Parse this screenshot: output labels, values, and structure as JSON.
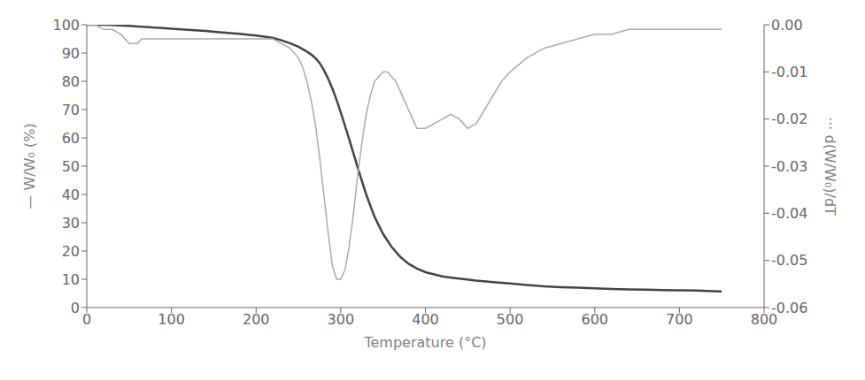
{
  "chart_data": {
    "type": "line",
    "xlabel": "Temperature (°C)",
    "ylabel": "— W/W₀ (%)",
    "y2label": "··· d(W/W₀)/dT",
    "xlim": [
      0,
      800
    ],
    "xticks": [
      0,
      100,
      200,
      300,
      400,
      500,
      600,
      700,
      800
    ],
    "ylim": [
      0,
      100
    ],
    "yticks": [
      0,
      10,
      20,
      30,
      40,
      50,
      60,
      70,
      80,
      90,
      100
    ],
    "y2lim": [
      -0.06,
      0.0
    ],
    "y2ticks": [
      {
        "value": 0.0,
        "label": "0.00"
      },
      {
        "value": -0.01,
        "label": "-0.01"
      },
      {
        "value": -0.02,
        "label": "-0.02"
      },
      {
        "value": -0.03,
        "label": "-0.03"
      },
      {
        "value": -0.04,
        "label": "-0.04"
      },
      {
        "value": -0.05,
        "label": "-0.05"
      },
      {
        "value": -0.06,
        "label": "-0.06"
      }
    ],
    "grid": false,
    "series": [
      {
        "color": "#444444",
        "x": [
          0,
          10,
          20,
          30,
          40,
          50,
          60,
          70,
          80,
          90,
          100,
          120,
          140,
          160,
          180,
          200,
          210,
          220,
          230,
          240,
          250,
          260,
          265,
          270,
          275,
          280,
          285,
          290,
          295,
          300,
          310,
          320,
          330,
          340,
          350,
          360,
          370,
          380,
          390,
          400,
          420,
          440,
          460,
          480,
          500,
          520,
          540,
          560,
          580,
          600,
          620,
          640,
          660,
          680,
          700,
          720,
          740,
          750
        ],
        "values": [
          100,
          100,
          100,
          99.9,
          99.8,
          99.6,
          99.4,
          99.2,
          99.0,
          98.8,
          98.6,
          98.2,
          97.8,
          97.3,
          96.8,
          96.2,
          95.8,
          95.3,
          94.5,
          93.5,
          92.2,
          90.5,
          89.5,
          88.2,
          86.5,
          84.0,
          81.0,
          77.5,
          73.5,
          69.0,
          59.5,
          49.5,
          40.0,
          32.0,
          26.0,
          21.5,
          18.0,
          15.5,
          13.8,
          12.5,
          11.0,
          10.2,
          9.5,
          9.0,
          8.5,
          8.0,
          7.5,
          7.2,
          7.0,
          6.8,
          6.6,
          6.4,
          6.3,
          6.2,
          6.1,
          6.0,
          5.8,
          5.7
        ]
      },
      {
        "color": "#aaaaaa",
        "axis": "y2",
        "x": [
          0,
          10,
          20,
          30,
          40,
          50,
          55,
          60,
          65,
          70,
          80,
          90,
          100,
          110,
          120,
          130,
          140,
          150,
          160,
          170,
          180,
          190,
          200,
          210,
          220,
          230,
          240,
          250,
          255,
          260,
          265,
          270,
          275,
          280,
          285,
          290,
          295,
          300,
          305,
          310,
          315,
          320,
          325,
          330,
          335,
          340,
          345,
          350,
          355,
          360,
          365,
          370,
          375,
          380,
          385,
          390,
          400,
          410,
          420,
          430,
          440,
          450,
          460,
          470,
          480,
          490,
          500,
          520,
          540,
          560,
          580,
          600,
          620,
          640,
          660,
          680,
          700,
          720,
          740,
          750
        ],
        "values": [
          0.0,
          0.0,
          -0.001,
          -0.001,
          -0.002,
          -0.004,
          -0.004,
          -0.004,
          -0.003,
          -0.003,
          -0.003,
          -0.003,
          -0.003,
          -0.003,
          -0.003,
          -0.003,
          -0.003,
          -0.003,
          -0.003,
          -0.003,
          -0.003,
          -0.003,
          -0.003,
          -0.003,
          -0.003,
          -0.004,
          -0.005,
          -0.007,
          -0.009,
          -0.012,
          -0.016,
          -0.021,
          -0.028,
          -0.036,
          -0.044,
          -0.051,
          -0.054,
          -0.054,
          -0.052,
          -0.047,
          -0.04,
          -0.032,
          -0.025,
          -0.019,
          -0.015,
          -0.012,
          -0.011,
          -0.01,
          -0.01,
          -0.011,
          -0.012,
          -0.014,
          -0.016,
          -0.018,
          -0.02,
          -0.022,
          -0.022,
          -0.021,
          -0.02,
          -0.019,
          -0.02,
          -0.022,
          -0.021,
          -0.018,
          -0.015,
          -0.012,
          -0.01,
          -0.007,
          -0.005,
          -0.004,
          -0.003,
          -0.002,
          -0.002,
          -0.001,
          -0.001,
          -0.001,
          -0.001,
          -0.001,
          -0.001,
          -0.001
        ]
      }
    ]
  }
}
